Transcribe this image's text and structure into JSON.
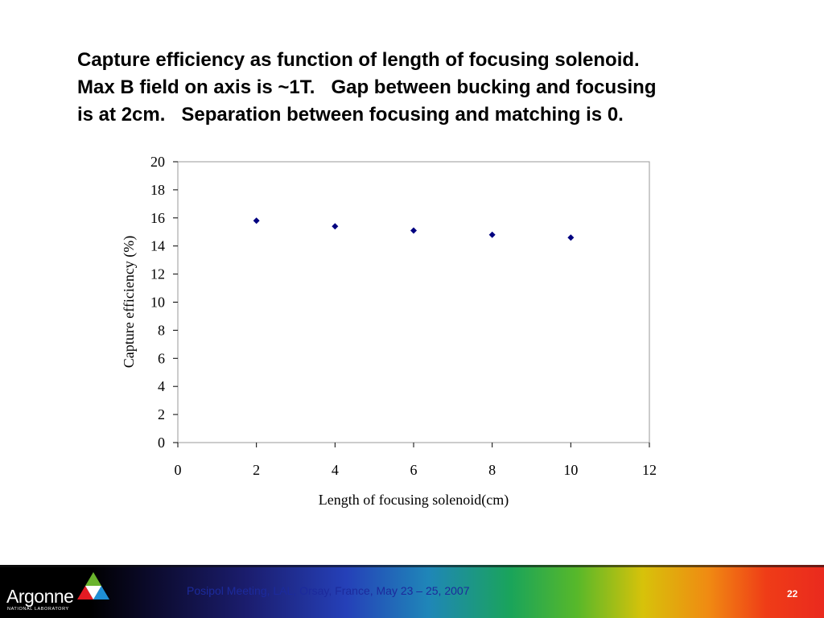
{
  "slide": {
    "title_lines": [
      "Capture efficiency as function of length of focusing solenoid.",
      "Max B field on axis is ~1T.   Gap between bucking and focusing",
      "is at 2cm.   Separation between focusing and matching is 0."
    ]
  },
  "chart_data": {
    "type": "scatter",
    "title": "",
    "xlabel": "Length of focusing solenoid(cm)",
    "ylabel": "Capture efficiency (%)",
    "xlim": [
      0,
      12
    ],
    "ylim": [
      0,
      20
    ],
    "x_ticks": [
      0,
      2,
      4,
      6,
      8,
      10,
      12
    ],
    "y_ticks": [
      0,
      2,
      4,
      6,
      8,
      10,
      12,
      14,
      16,
      18,
      20
    ],
    "grid": false,
    "legend": "none",
    "marker": "diamond",
    "marker_color": "#000080",
    "series": [
      {
        "x": [
          2,
          4,
          6,
          8,
          10
        ],
        "y": [
          15.8,
          15.4,
          15.1,
          14.8,
          14.6
        ]
      }
    ]
  },
  "footer": {
    "meeting": "Posipol Meeting, LAL, Orsay, France, May 23 – 25, 2007",
    "page_number": "22",
    "logo_word": "Argonne",
    "logo_sub": "NATIONAL LABORATORY"
  }
}
